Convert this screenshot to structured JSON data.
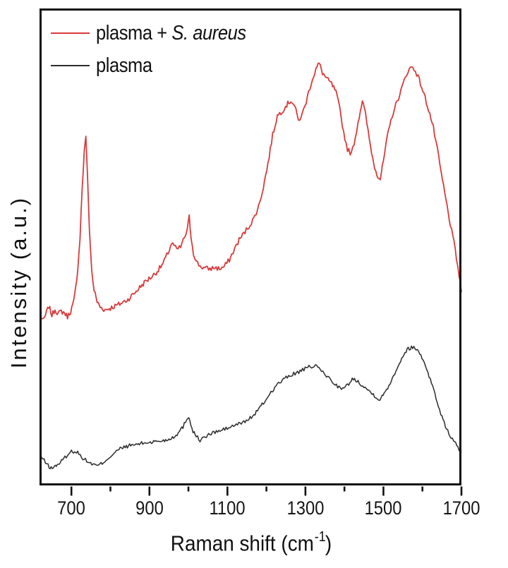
{
  "chart_data": {
    "type": "line",
    "title": "",
    "xlabel_main": "Raman shift (cm",
    "xlabel_sup": "-1",
    "xlabel_close": ")",
    "ylabel": "Intensity (a.u.)",
    "xlim": [
      620,
      1700
    ],
    "ylim": [
      0,
      100
    ],
    "x_major_ticks": [
      700,
      900,
      1100,
      1300,
      1500,
      1700
    ],
    "x_minor_ticks": [
      800,
      1000,
      1200,
      1400,
      1600
    ],
    "grid": false,
    "legend_position": "top-left inside",
    "frame_color": "#111111",
    "background_color": "#ffffff",
    "series": [
      {
        "name": "plasma + S. aureus",
        "label_prefix": "plasma + ",
        "label_italic": "S. aureus",
        "color": "#d93a3a",
        "line_width": 1.8,
        "noise_amplitude": 0.55,
        "seed": 7,
        "points": [
          [
            620,
            35.7
          ],
          [
            628,
            34.5
          ],
          [
            636,
            36.2
          ],
          [
            642,
            37.6
          ],
          [
            650,
            35.7
          ],
          [
            658,
            36.9
          ],
          [
            666,
            36.0
          ],
          [
            674,
            36.5
          ],
          [
            682,
            36.2
          ],
          [
            690,
            35.4
          ],
          [
            698,
            36.5
          ],
          [
            706,
            38.5
          ],
          [
            714,
            43.0
          ],
          [
            722,
            52.0
          ],
          [
            728,
            63.0
          ],
          [
            733,
            70.0
          ],
          [
            737,
            73.4
          ],
          [
            741,
            65.0
          ],
          [
            746,
            54.0
          ],
          [
            752,
            45.0
          ],
          [
            758,
            41.0
          ],
          [
            766,
            38.5
          ],
          [
            774,
            37.4
          ],
          [
            786,
            36.8
          ],
          [
            800,
            37.2
          ],
          [
            815,
            37.7
          ],
          [
            830,
            38.3
          ],
          [
            845,
            39.0
          ],
          [
            860,
            40.2
          ],
          [
            875,
            41.5
          ],
          [
            890,
            42.8
          ],
          [
            905,
            43.7
          ],
          [
            920,
            44.9
          ],
          [
            935,
            46.5
          ],
          [
            948,
            48.8
          ],
          [
            957,
            50.8
          ],
          [
            963,
            50.3
          ],
          [
            970,
            49.4
          ],
          [
            980,
            50.0
          ],
          [
            990,
            52.0
          ],
          [
            997,
            53.5
          ],
          [
            1002,
            56.3
          ],
          [
            1007,
            52.0
          ],
          [
            1013,
            48.8
          ],
          [
            1020,
            46.9
          ],
          [
            1030,
            46.0
          ],
          [
            1042,
            45.5
          ],
          [
            1055,
            45.4
          ],
          [
            1068,
            45.7
          ],
          [
            1080,
            45.4
          ],
          [
            1092,
            45.9
          ],
          [
            1105,
            47.3
          ],
          [
            1118,
            49.5
          ],
          [
            1130,
            51.5
          ],
          [
            1142,
            52.8
          ],
          [
            1155,
            54.3
          ],
          [
            1168,
            56.0
          ],
          [
            1180,
            58.5
          ],
          [
            1192,
            62.5
          ],
          [
            1204,
            67.5
          ],
          [
            1216,
            73.5
          ],
          [
            1228,
            77.5
          ],
          [
            1240,
            78.5
          ],
          [
            1252,
            79.8
          ],
          [
            1263,
            80.7
          ],
          [
            1272,
            79.6
          ],
          [
            1282,
            76.5
          ],
          [
            1292,
            77.8
          ],
          [
            1302,
            80.5
          ],
          [
            1315,
            84.5
          ],
          [
            1327,
            87.3
          ],
          [
            1335,
            88.5
          ],
          [
            1344,
            86.5
          ],
          [
            1355,
            85.2
          ],
          [
            1367,
            84.2
          ],
          [
            1378,
            82.5
          ],
          [
            1388,
            79.0
          ],
          [
            1398,
            74.0
          ],
          [
            1408,
            70.5
          ],
          [
            1418,
            69.5
          ],
          [
            1428,
            73.0
          ],
          [
            1438,
            77.5
          ],
          [
            1446,
            80.7
          ],
          [
            1454,
            77.8
          ],
          [
            1464,
            72.5
          ],
          [
            1475,
            67.5
          ],
          [
            1486,
            64.8
          ],
          [
            1492,
            64.3
          ],
          [
            1500,
            68.0
          ],
          [
            1510,
            73.0
          ],
          [
            1522,
            77.5
          ],
          [
            1535,
            80.5
          ],
          [
            1548,
            83.5
          ],
          [
            1560,
            86.5
          ],
          [
            1572,
            87.8
          ],
          [
            1582,
            87.0
          ],
          [
            1592,
            85.0
          ],
          [
            1604,
            82.0
          ],
          [
            1616,
            78.8
          ],
          [
            1628,
            75.0
          ],
          [
            1638,
            70.5
          ],
          [
            1648,
            65.5
          ],
          [
            1660,
            60.0
          ],
          [
            1672,
            54.5
          ],
          [
            1684,
            49.5
          ],
          [
            1694,
            44.0
          ],
          [
            1700,
            40.5
          ]
        ]
      },
      {
        "name": "plasma",
        "label_prefix": "plasma",
        "label_italic": "",
        "color": "#2b2b2b",
        "line_width": 1.5,
        "noise_amplitude": 0.4,
        "seed": 13,
        "points": [
          [
            620,
            6.3
          ],
          [
            630,
            5.2
          ],
          [
            640,
            4.2
          ],
          [
            648,
            3.6
          ],
          [
            656,
            3.9
          ],
          [
            664,
            4.4
          ],
          [
            672,
            4.8
          ],
          [
            680,
            5.6
          ],
          [
            690,
            6.4
          ],
          [
            700,
            7.1
          ],
          [
            708,
            7.2
          ],
          [
            716,
            6.9
          ],
          [
            726,
            6.0
          ],
          [
            736,
            5.3
          ],
          [
            746,
            4.8
          ],
          [
            756,
            4.4
          ],
          [
            766,
            4.1
          ],
          [
            776,
            4.5
          ],
          [
            788,
            5.3
          ],
          [
            800,
            6.1
          ],
          [
            812,
            6.9
          ],
          [
            825,
            7.7
          ],
          [
            838,
            8.1
          ],
          [
            852,
            8.4
          ],
          [
            866,
            8.6
          ],
          [
            880,
            8.8
          ],
          [
            894,
            9.0
          ],
          [
            908,
            9.1
          ],
          [
            922,
            9.3
          ],
          [
            936,
            9.4
          ],
          [
            950,
            9.7
          ],
          [
            962,
            10.2
          ],
          [
            974,
            11.0
          ],
          [
            986,
            12.3
          ],
          [
            996,
            14.0
          ],
          [
            1001,
            14.5
          ],
          [
            1006,
            12.8
          ],
          [
            1012,
            11.4
          ],
          [
            1020,
            10.3
          ],
          [
            1030,
            9.5
          ],
          [
            1040,
            10.0
          ],
          [
            1052,
            10.6
          ],
          [
            1065,
            11.1
          ],
          [
            1078,
            11.4
          ],
          [
            1090,
            11.7
          ],
          [
            1103,
            12.1
          ],
          [
            1116,
            12.5
          ],
          [
            1129,
            12.9
          ],
          [
            1142,
            13.3
          ],
          [
            1155,
            13.9
          ],
          [
            1168,
            14.8
          ],
          [
            1180,
            16.0
          ],
          [
            1192,
            17.2
          ],
          [
            1205,
            18.8
          ],
          [
            1218,
            20.2
          ],
          [
            1231,
            21.4
          ],
          [
            1244,
            22.2
          ],
          [
            1257,
            22.9
          ],
          [
            1270,
            23.4
          ],
          [
            1283,
            23.8
          ],
          [
            1296,
            24.3
          ],
          [
            1309,
            24.8
          ],
          [
            1322,
            25.1
          ],
          [
            1335,
            24.6
          ],
          [
            1348,
            23.5
          ],
          [
            1360,
            22.5
          ],
          [
            1373,
            21.5
          ],
          [
            1386,
            20.6
          ],
          [
            1396,
            20.2
          ],
          [
            1408,
            21.0
          ],
          [
            1420,
            22.3
          ],
          [
            1432,
            22.0
          ],
          [
            1444,
            21.2
          ],
          [
            1456,
            20.3
          ],
          [
            1468,
            19.5
          ],
          [
            1480,
            18.7
          ],
          [
            1491,
            17.9
          ],
          [
            1502,
            19.3
          ],
          [
            1514,
            21.0
          ],
          [
            1526,
            23.0
          ],
          [
            1538,
            25.2
          ],
          [
            1550,
            27.2
          ],
          [
            1561,
            28.5
          ],
          [
            1572,
            29.0
          ],
          [
            1584,
            28.7
          ],
          [
            1596,
            27.3
          ],
          [
            1608,
            25.2
          ],
          [
            1620,
            22.3
          ],
          [
            1632,
            19.2
          ],
          [
            1644,
            15.8
          ],
          [
            1656,
            13.0
          ],
          [
            1668,
            10.9
          ],
          [
            1680,
            9.3
          ],
          [
            1691,
            8.0
          ],
          [
            1700,
            6.9
          ]
        ]
      }
    ]
  }
}
